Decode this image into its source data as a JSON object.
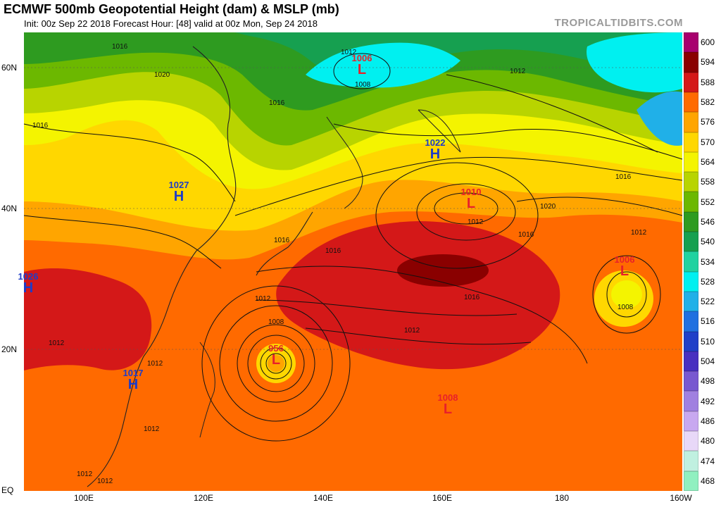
{
  "header": {
    "title": "ECMWF 500mb Geopotential Height (dam) & MSLP (mb)",
    "subtitle": "Init: 00z Sep 22 2018   Forecast Hour: [48]   valid at 00z Mon, Sep 24 2018",
    "brand": "TROPICALTIDBITS.COM"
  },
  "axes": {
    "lat_labels": [
      "60N",
      "40N",
      "20N",
      "EQ"
    ],
    "lon_labels": [
      "100E",
      "120E",
      "140E",
      "160E",
      "180",
      "160W"
    ]
  },
  "colorbar": {
    "levels": [
      "600",
      "594",
      "588",
      "582",
      "576",
      "570",
      "564",
      "558",
      "552",
      "546",
      "540",
      "534",
      "528",
      "522",
      "516",
      "510",
      "504",
      "498",
      "492",
      "486",
      "480",
      "474",
      "468"
    ],
    "colors": [
      "#a8006e",
      "#8a0000",
      "#d41818",
      "#ff6a00",
      "#ffa500",
      "#ffd700",
      "#f4f400",
      "#b8d400",
      "#6cb800",
      "#2e9b20",
      "#16a050",
      "#20d2a0",
      "#00f0f0",
      "#20b0e8",
      "#2070e0",
      "#2040c8",
      "#4830c0",
      "#7858d0",
      "#a080e0",
      "#c8a8f0",
      "#e8d8f8",
      "#c0f0e0",
      "#90f0c0"
    ]
  },
  "systems": [
    {
      "type": "L",
      "value": "1006",
      "kind": "low"
    },
    {
      "type": "H",
      "value": "1022",
      "kind": "high"
    },
    {
      "type": "L",
      "value": "1010",
      "kind": "low"
    },
    {
      "type": "H",
      "value": "1027",
      "kind": "high"
    },
    {
      "type": "L",
      "value": "1006",
      "kind": "low"
    },
    {
      "type": "L",
      "value": "956",
      "kind": "low"
    },
    {
      "type": "H",
      "value": "1017",
      "kind": "high"
    },
    {
      "type": "L",
      "value": "1008",
      "kind": "low"
    },
    {
      "type": "H",
      "value": "1026",
      "kind": "high"
    }
  ],
  "isobar_labels": [
    "1012",
    "1008",
    "1016",
    "1012",
    "1020",
    "1016",
    "1016",
    "1020",
    "1016",
    "1016",
    "1016",
    "1012",
    "1012",
    "1012",
    "1008",
    "1016",
    "1012",
    "1016",
    "1012",
    "1008",
    "1012",
    "1012",
    "1012",
    "1012"
  ]
}
